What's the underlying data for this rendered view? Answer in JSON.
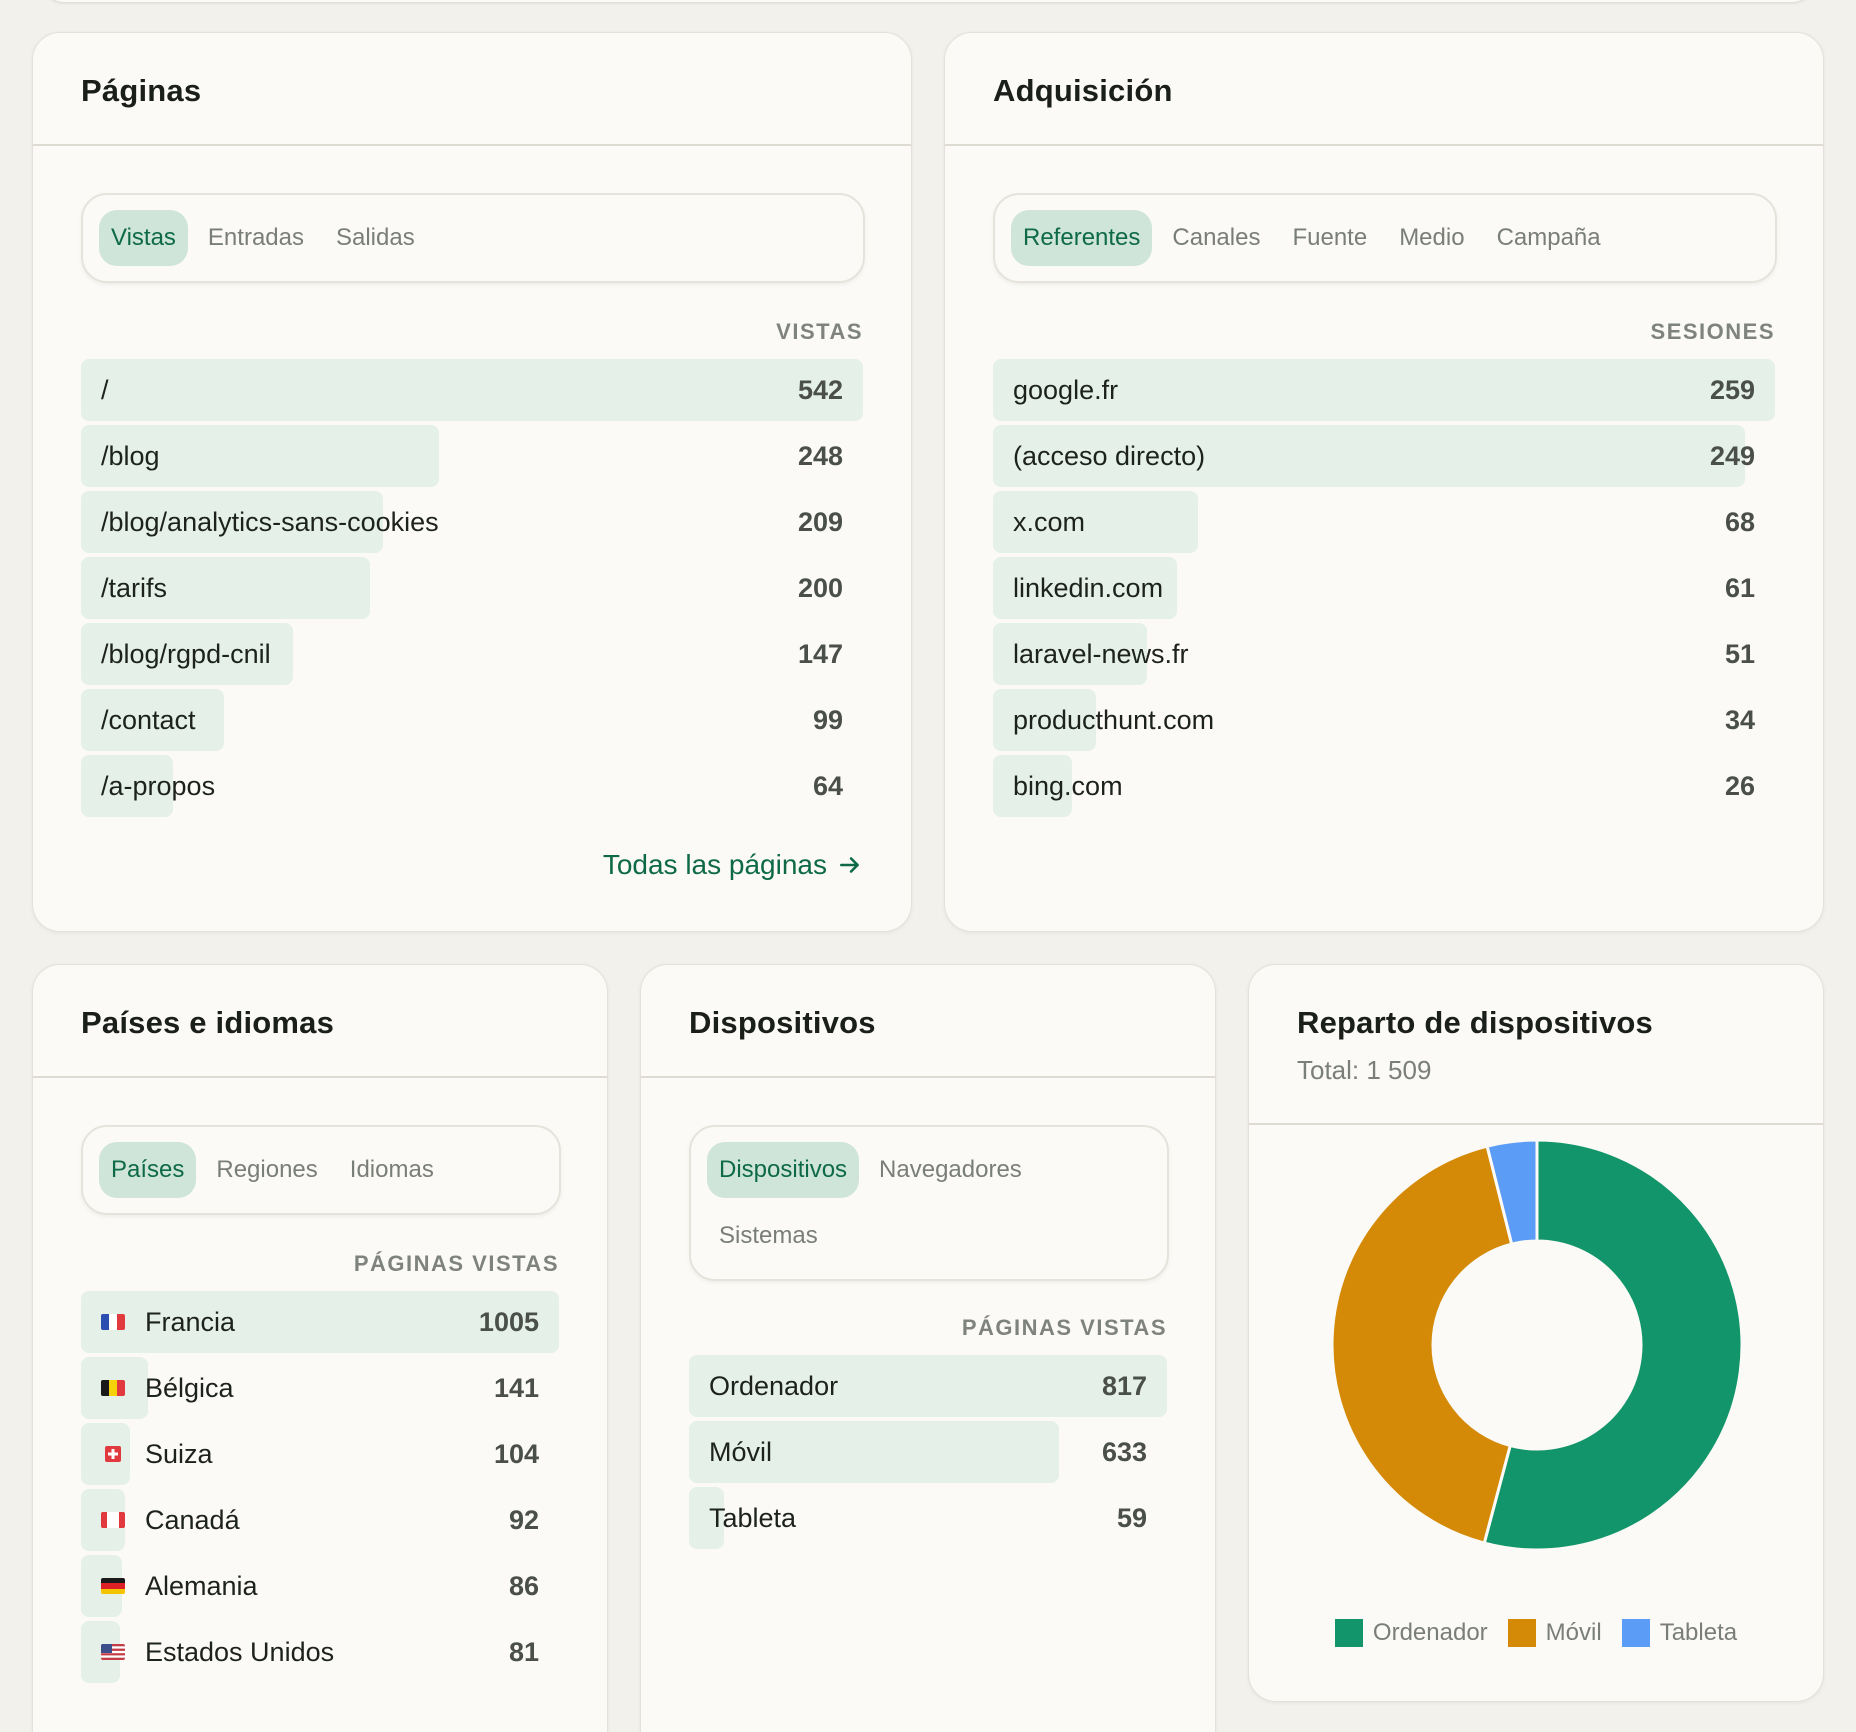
{
  "pages": {
    "title": "Páginas",
    "tabs": [
      "Vistas",
      "Entradas",
      "Salidas"
    ],
    "active_tab": 0,
    "column_header": "VISTAS",
    "rows": [
      {
        "label": "/",
        "value": 542
      },
      {
        "label": "/blog",
        "value": 248
      },
      {
        "label": "/blog/analytics-sans-cookies",
        "value": 209
      },
      {
        "label": "/tarifs",
        "value": 200
      },
      {
        "label": "/blog/rgpd-cnil",
        "value": 147
      },
      {
        "label": "/contact",
        "value": 99
      },
      {
        "label": "/a-propos",
        "value": 64
      }
    ],
    "link_label": "Todas las páginas"
  },
  "acquisition": {
    "title": "Adquisición",
    "tabs": [
      "Referentes",
      "Canales",
      "Fuente",
      "Medio",
      "Campaña"
    ],
    "active_tab": 0,
    "column_header": "SESIONES",
    "rows": [
      {
        "label": "google.fr",
        "value": 259
      },
      {
        "label": "(acceso directo)",
        "value": 249
      },
      {
        "label": "x.com",
        "value": 68
      },
      {
        "label": "linkedin.com",
        "value": 61
      },
      {
        "label": "laravel-news.fr",
        "value": 51
      },
      {
        "label": "producthunt.com",
        "value": 34
      },
      {
        "label": "bing.com",
        "value": 26
      }
    ]
  },
  "countries": {
    "title": "Países e idiomas",
    "tabs": [
      "Países",
      "Regiones",
      "Idiomas"
    ],
    "active_tab": 0,
    "column_header": "PÁGINAS VISTAS",
    "rows": [
      {
        "label": "Francia",
        "value": 1005,
        "flag": "fr"
      },
      {
        "label": "Bélgica",
        "value": 141,
        "flag": "be"
      },
      {
        "label": "Suiza",
        "value": 104,
        "flag": "ch"
      },
      {
        "label": "Canadá",
        "value": 92,
        "flag": "ca"
      },
      {
        "label": "Alemania",
        "value": 86,
        "flag": "de"
      },
      {
        "label": "Estados Unidos",
        "value": 81,
        "flag": "us"
      }
    ]
  },
  "devices": {
    "title": "Dispositivos",
    "tabs": [
      "Dispositivos",
      "Navegadores",
      "Sistemas"
    ],
    "active_tab": 0,
    "column_header": "PÁGINAS VISTAS",
    "rows": [
      {
        "label": "Ordenador",
        "value": 817
      },
      {
        "label": "Móvil",
        "value": 633
      },
      {
        "label": "Tableta",
        "value": 59
      }
    ]
  },
  "device_split": {
    "title": "Reparto de dispositivos",
    "subtitle": "Total: 1 509"
  },
  "chart_data": {
    "type": "pie",
    "donut": true,
    "categories": [
      "Ordenador",
      "Móvil",
      "Tableta"
    ],
    "values": [
      817,
      633,
      59
    ],
    "colors": [
      "#12956a",
      "#d48a06",
      "#5b9cf6"
    ],
    "legend": "bottom"
  }
}
